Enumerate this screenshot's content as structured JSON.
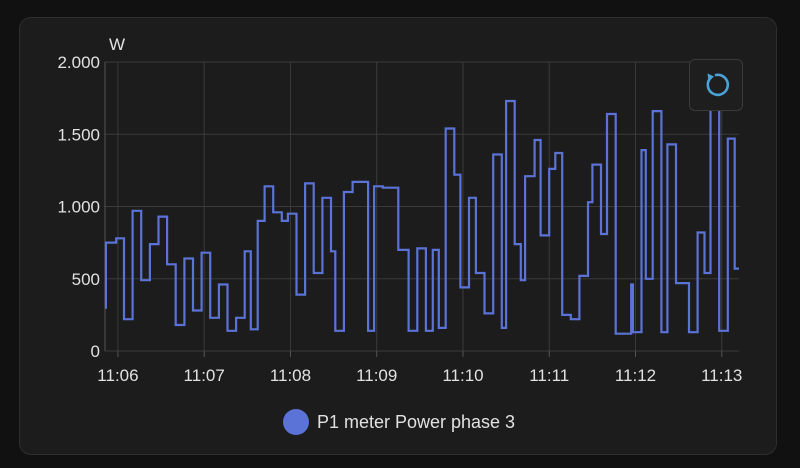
{
  "chart_data": {
    "type": "line",
    "step": true,
    "unit": "W",
    "ylim": [
      0,
      2000
    ],
    "y_ticks": [
      0,
      500,
      1000,
      1500,
      2000
    ],
    "y_tick_labels": [
      "0",
      "500",
      "1.000",
      "1.500",
      "2.000"
    ],
    "x_range_minutes": [
      5.85,
      13.2
    ],
    "x_ticks": [
      6,
      7,
      8,
      9,
      10,
      11,
      12,
      13
    ],
    "x_tick_labels": [
      "11:06",
      "11:07",
      "11:08",
      "11:09",
      "11:10",
      "11:11",
      "11:12",
      "11:13"
    ],
    "grid": true,
    "legend_position": "bottom",
    "series": [
      {
        "name": "P1 meter Power phase 3",
        "color": "#5b72d6",
        "x": [
          5.85,
          5.86,
          5.98,
          6.07,
          6.17,
          6.27,
          6.37,
          6.47,
          6.57,
          6.67,
          6.77,
          6.87,
          6.97,
          7.07,
          7.17,
          7.27,
          7.37,
          7.47,
          7.54,
          7.62,
          7.7,
          7.8,
          7.9,
          7.97,
          8.07,
          8.17,
          8.27,
          8.37,
          8.47,
          8.52,
          8.62,
          8.72,
          8.9,
          8.97,
          9.07,
          9.25,
          9.37,
          9.47,
          9.57,
          9.65,
          9.72,
          9.8,
          9.9,
          9.97,
          10.07,
          10.15,
          10.25,
          10.35,
          10.45,
          10.5,
          10.6,
          10.67,
          10.72,
          10.83,
          10.9,
          11.0,
          11.07,
          11.15,
          11.25,
          11.35,
          11.45,
          11.5,
          11.6,
          11.67,
          11.77,
          11.95,
          11.97,
          12.07,
          12.12,
          12.2,
          12.3,
          12.37,
          12.47,
          12.62,
          12.72,
          12.8,
          12.87,
          12.97,
          13.07,
          13.15
        ],
        "y": [
          300,
          750,
          780,
          220,
          970,
          490,
          740,
          930,
          600,
          180,
          640,
          280,
          680,
          230,
          460,
          140,
          230,
          690,
          150,
          900,
          1140,
          960,
          900,
          950,
          390,
          1160,
          540,
          1060,
          690,
          140,
          1100,
          1170,
          140,
          1140,
          1130,
          700,
          140,
          710,
          140,
          700,
          160,
          1540,
          1220,
          440,
          1060,
          540,
          260,
          1360,
          160,
          1730,
          740,
          490,
          1210,
          1460,
          800,
          1260,
          1370,
          250,
          220,
          520,
          1030,
          1290,
          810,
          1640,
          120,
          460,
          130,
          1390,
          500,
          1660,
          130,
          1430,
          470,
          130,
          820,
          540,
          1700,
          140,
          1470,
          570
        ]
      }
    ]
  },
  "legend": {
    "label": "P1 meter Power phase 3",
    "color": "#5b72d6"
  },
  "reset_zoom": {
    "icon": "reset-zoom-icon"
  }
}
